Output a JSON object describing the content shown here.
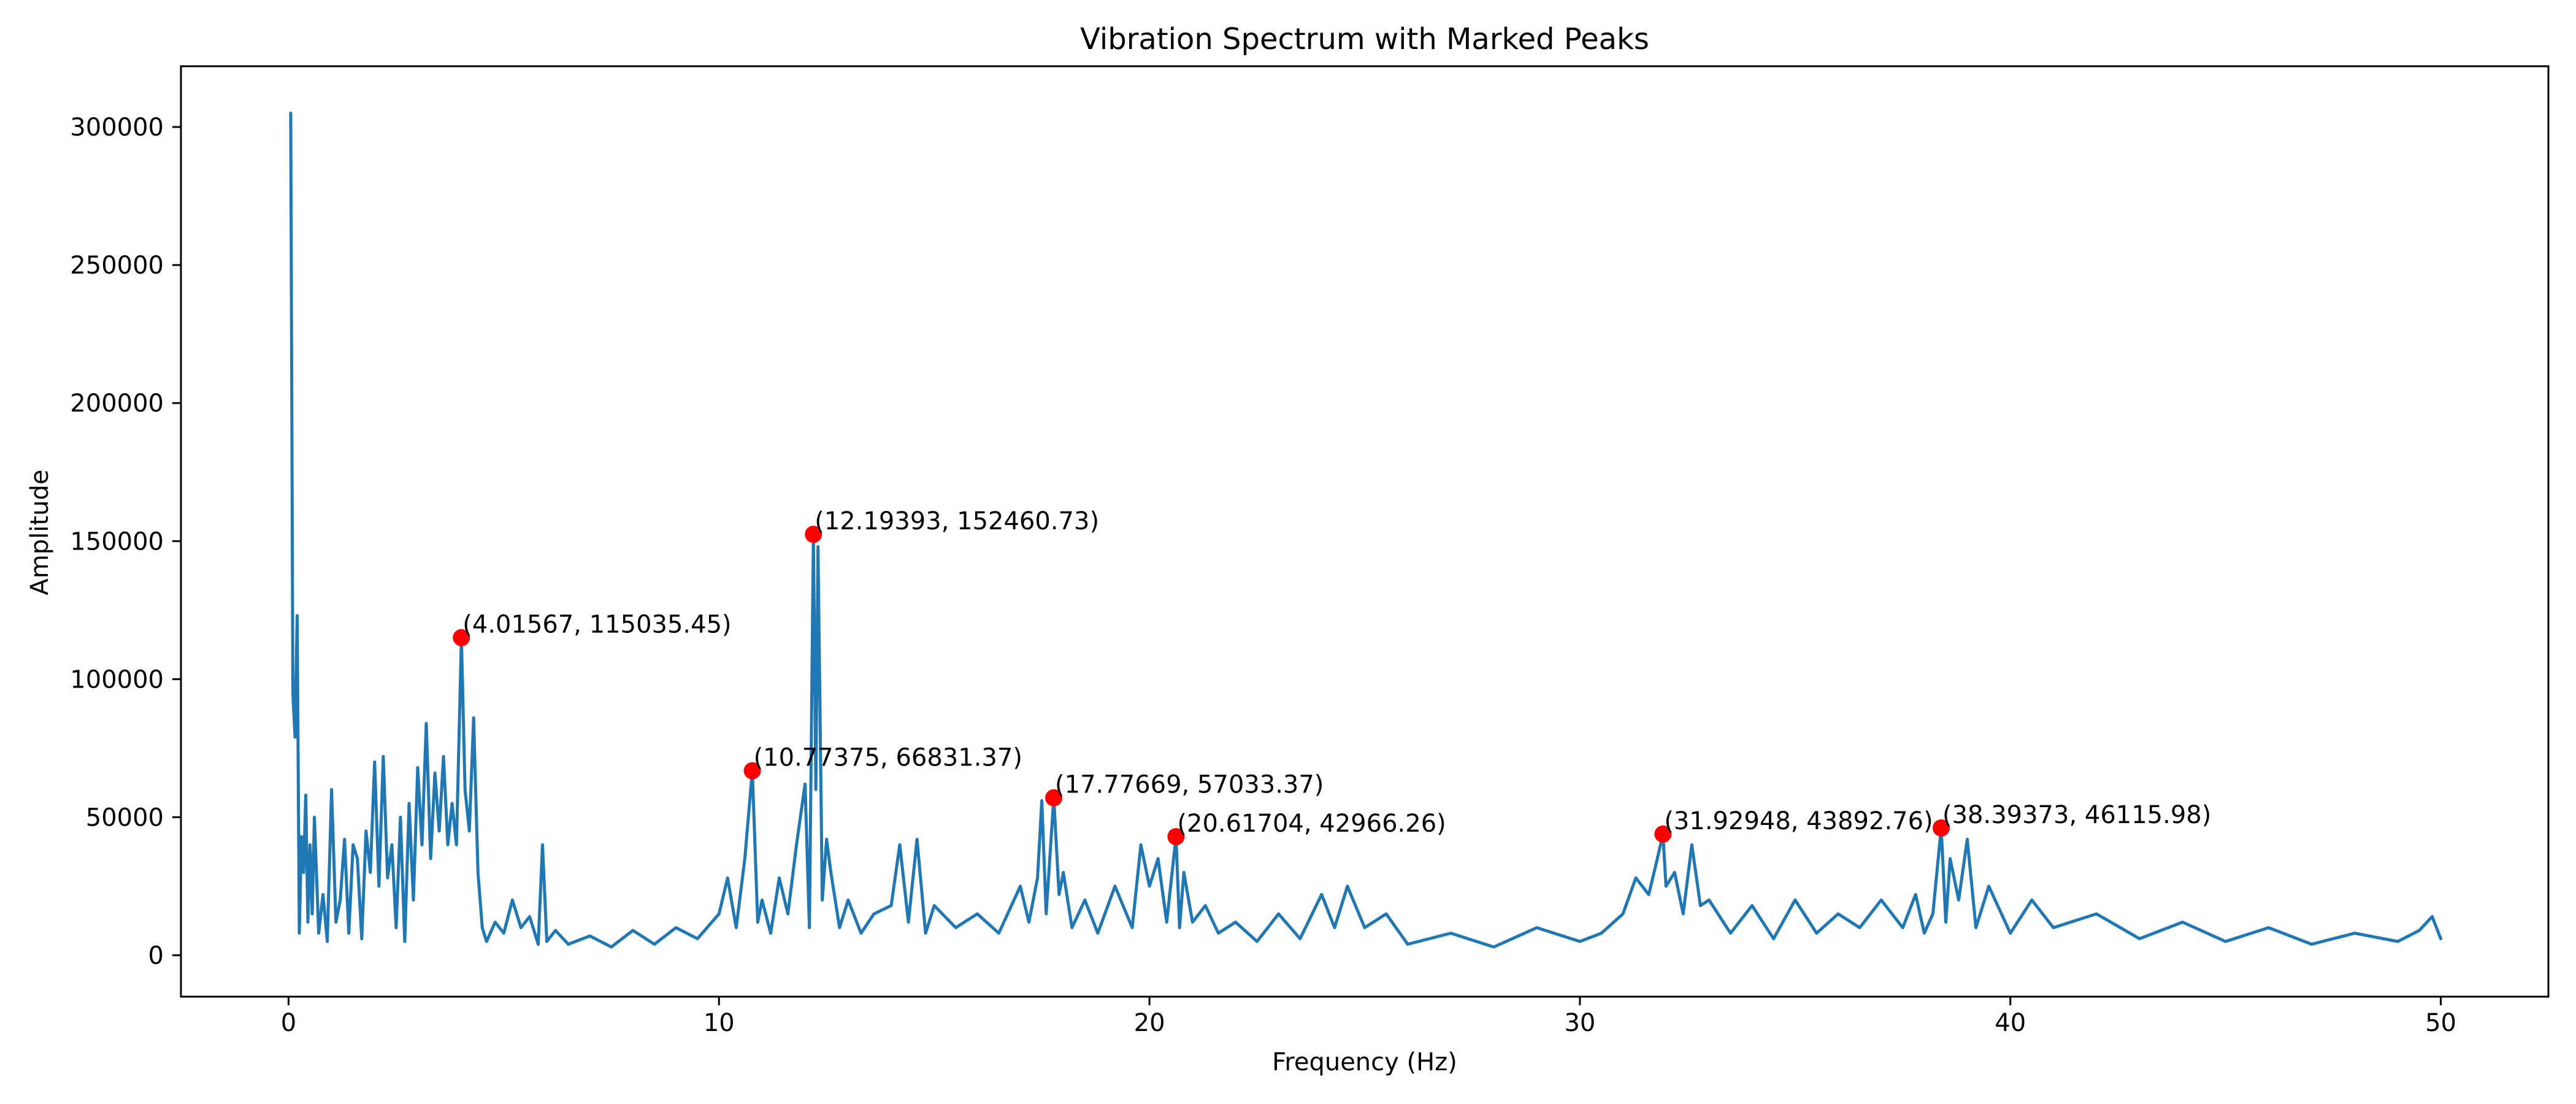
{
  "chart_data": {
    "type": "line",
    "title": "Vibration Spectrum with Marked Peaks",
    "xlabel": "Frequency (Hz)",
    "ylabel": "Amplitude",
    "xlim": [
      -2.5,
      52.5
    ],
    "ylim": [
      -15000,
      322000
    ],
    "xticks": [
      0,
      10,
      20,
      30,
      40,
      50
    ],
    "yticks": [
      0,
      50000,
      100000,
      150000,
      200000,
      250000,
      300000
    ],
    "grid": false,
    "line_color": "#1f77b4",
    "marker_color": "#ff0000",
    "series": [
      {
        "x": [
          0.05,
          0.1,
          0.15,
          0.2,
          0.25,
          0.3,
          0.35,
          0.4,
          0.45,
          0.5,
          0.55,
          0.6,
          0.7,
          0.8,
          0.9,
          1.0,
          1.1,
          1.2,
          1.3,
          1.4,
          1.5,
          1.6,
          1.7,
          1.8,
          1.9,
          2.0,
          2.1,
          2.2,
          2.3,
          2.4,
          2.5,
          2.6,
          2.7,
          2.8,
          2.9,
          3.0,
          3.1,
          3.2,
          3.3,
          3.4,
          3.5,
          3.6,
          3.7,
          3.8,
          3.9,
          4.01567,
          4.1,
          4.2,
          4.3,
          4.4,
          4.5,
          4.6,
          4.8,
          5.0,
          5.2,
          5.4,
          5.6,
          5.8,
          5.9,
          6.0,
          6.2,
          6.5,
          7.0,
          7.5,
          8.0,
          8.5,
          9.0,
          9.5,
          10.0,
          10.2,
          10.4,
          10.6,
          10.77375,
          10.9,
          11.0,
          11.2,
          11.4,
          11.6,
          11.8,
          12.0,
          12.1,
          12.19393,
          12.25,
          12.3,
          12.4,
          12.5,
          12.6,
          12.8,
          13.0,
          13.3,
          13.6,
          14.0,
          14.2,
          14.4,
          14.6,
          14.8,
          15.0,
          15.5,
          16.0,
          16.5,
          17.0,
          17.2,
          17.4,
          17.5,
          17.6,
          17.77669,
          17.9,
          18.0,
          18.2,
          18.5,
          18.8,
          19.2,
          19.6,
          19.8,
          20.0,
          20.2,
          20.4,
          20.61704,
          20.7,
          20.8,
          21.0,
          21.3,
          21.6,
          22.0,
          22.5,
          23.0,
          23.5,
          24.0,
          24.3,
          24.6,
          25.0,
          25.5,
          26.0,
          27.0,
          28.0,
          29.0,
          30.0,
          30.5,
          31.0,
          31.3,
          31.6,
          31.8,
          31.92948,
          32.0,
          32.2,
          32.4,
          32.6,
          32.8,
          33.0,
          33.5,
          34.0,
          34.5,
          35.0,
          35.5,
          36.0,
          36.5,
          37.0,
          37.5,
          37.8,
          38.0,
          38.2,
          38.39373,
          38.5,
          38.6,
          38.8,
          39.0,
          39.2,
          39.5,
          40.0,
          40.5,
          41.0,
          42.0,
          43.0,
          44.0,
          45.0,
          46.0,
          47.0,
          48.0,
          49.0,
          49.5,
          49.8,
          50.0
        ],
        "y": [
          305000,
          95000,
          79000,
          123000,
          8000,
          43000,
          30000,
          58000,
          12000,
          40000,
          15000,
          50000,
          8000,
          22000,
          5000,
          60000,
          12000,
          20000,
          42000,
          8000,
          40000,
          35000,
          6000,
          45000,
          30000,
          70000,
          25000,
          72000,
          28000,
          40000,
          10000,
          50000,
          5000,
          55000,
          20000,
          68000,
          40000,
          84000,
          35000,
          66000,
          45000,
          72000,
          40000,
          55000,
          40000,
          115035,
          60000,
          45000,
          86000,
          30000,
          10000,
          5000,
          12000,
          8000,
          20000,
          10000,
          14000,
          4000,
          40000,
          5000,
          9000,
          4000,
          7000,
          3000,
          9000,
          4000,
          10000,
          6000,
          15000,
          28000,
          10000,
          35000,
          66831,
          12000,
          20000,
          8000,
          28000,
          15000,
          40000,
          62000,
          10000,
          152461,
          60000,
          148000,
          20000,
          42000,
          30000,
          10000,
          20000,
          8000,
          15000,
          18000,
          40000,
          12000,
          42000,
          8000,
          18000,
          10000,
          15000,
          8000,
          25000,
          12000,
          28000,
          56000,
          15000,
          57033,
          22000,
          30000,
          10000,
          20000,
          8000,
          25000,
          10000,
          40000,
          25000,
          35000,
          12000,
          42966,
          10000,
          30000,
          12000,
          18000,
          8000,
          12000,
          5000,
          15000,
          6000,
          22000,
          10000,
          25000,
          10000,
          15000,
          4000,
          8000,
          3000,
          10000,
          5000,
          8000,
          15000,
          28000,
          22000,
          35000,
          43893,
          25000,
          30000,
          15000,
          40000,
          18000,
          20000,
          8000,
          18000,
          6000,
          20000,
          8000,
          15000,
          10000,
          20000,
          10000,
          22000,
          8000,
          15000,
          46116,
          12000,
          35000,
          20000,
          42000,
          10000,
          25000,
          8000,
          20000,
          10000,
          15000,
          6000,
          12000,
          5000,
          10000,
          4000,
          8000,
          5000,
          9000,
          14000,
          6000
        ]
      }
    ],
    "peaks": [
      {
        "x": 4.01567,
        "y": 115035.45,
        "label": "(4.01567, 115035.45)"
      },
      {
        "x": 10.77375,
        "y": 66831.37,
        "label": "(10.77375, 66831.37)"
      },
      {
        "x": 12.19393,
        "y": 152460.73,
        "label": "(12.19393, 152460.73)"
      },
      {
        "x": 17.77669,
        "y": 57033.37,
        "label": "(17.77669, 57033.37)"
      },
      {
        "x": 20.61704,
        "y": 42966.26,
        "label": "(20.61704, 42966.26)"
      },
      {
        "x": 31.92948,
        "y": 43892.76,
        "label": "(31.92948, 43892.76)"
      },
      {
        "x": 38.39373,
        "y": 46115.98,
        "label": "(38.39373, 46115.98)"
      }
    ]
  }
}
